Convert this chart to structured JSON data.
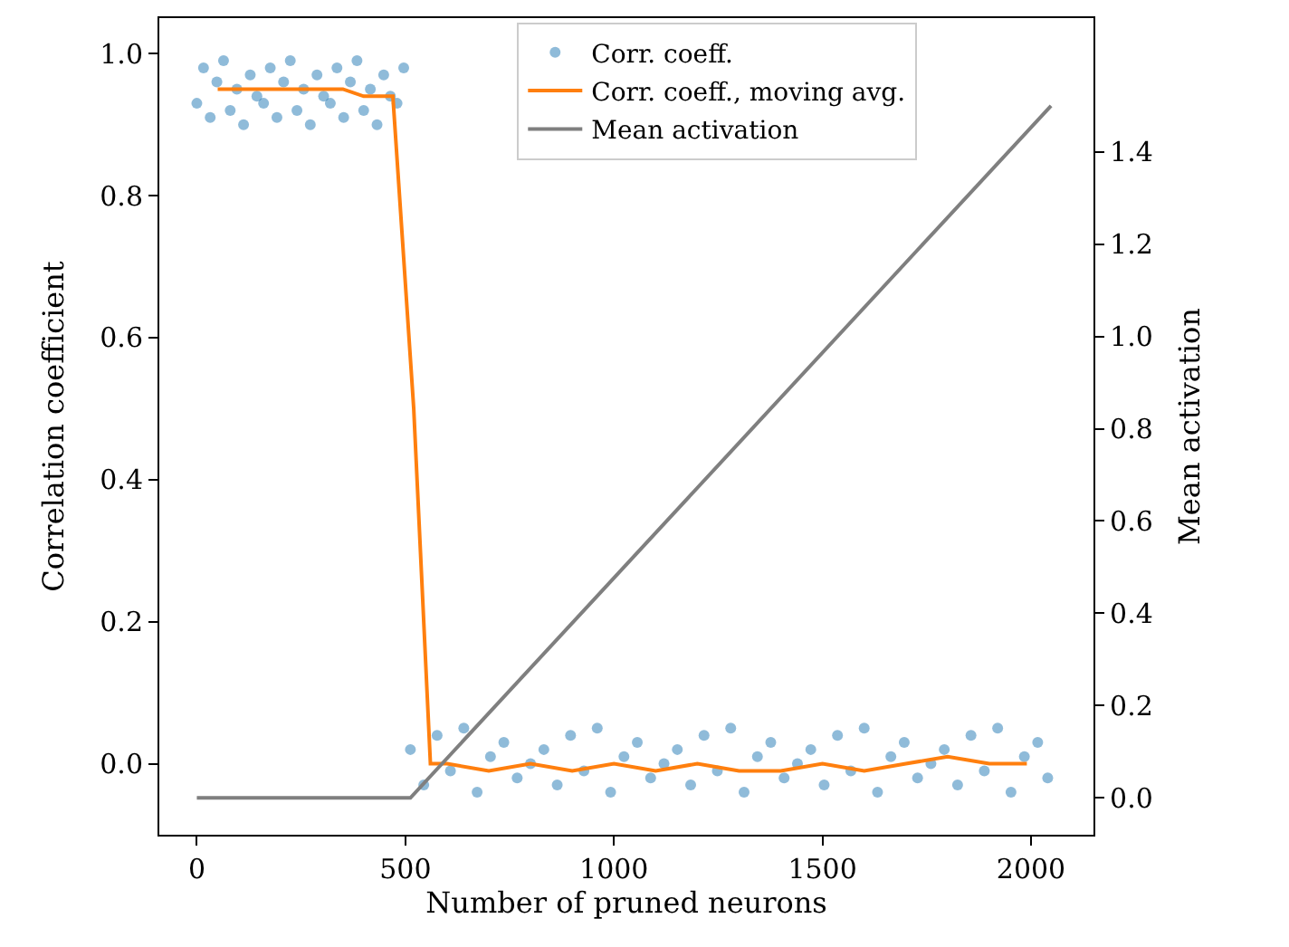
{
  "chart_data": {
    "type": "scatter",
    "xlabel": "Number of pruned neurons",
    "ylabel": "Correlation coefficient",
    "y2label": "Mean activation",
    "xlim": [
      -90,
      2150
    ],
    "xticks": [
      0,
      500,
      1000,
      1500,
      2000
    ],
    "ylim": [
      -0.1,
      1.05
    ],
    "yticks": [
      {
        "value": 0,
        "label": "0.0"
      },
      0.2,
      0.4,
      0.6,
      0.8,
      {
        "value": 1,
        "label": "1.0"
      }
    ],
    "y2lim": [
      -0.08,
      1.69
    ],
    "y2ticks": [
      {
        "value": 0,
        "label": "0.0"
      },
      0.2,
      0.4,
      0.6,
      0.8,
      {
        "value": 1,
        "label": "1.0"
      },
      1.2,
      1.4
    ],
    "legend": "top right",
    "grid": false,
    "series": [
      {
        "name": "Corr. coeff.",
        "marker": "circle",
        "color": "#1f77b4",
        "x": [
          0,
          16,
          32,
          48,
          64,
          80,
          96,
          112,
          128,
          144,
          160,
          176,
          192,
          208,
          224,
          240,
          256,
          272,
          288,
          304,
          320,
          336,
          352,
          368,
          384,
          400,
          416,
          432,
          448,
          464,
          480,
          496,
          512,
          544,
          576,
          608,
          640,
          672,
          704,
          736,
          768,
          800,
          832,
          864,
          896,
          928,
          960,
          992,
          1024,
          1056,
          1088,
          1120,
          1152,
          1184,
          1216,
          1248,
          1280,
          1312,
          1344,
          1376,
          1408,
          1440,
          1472,
          1504,
          1536,
          1568,
          1600,
          1632,
          1664,
          1696,
          1728,
          1760,
          1792,
          1824,
          1856,
          1888,
          1920,
          1952,
          1984,
          2016,
          2040
        ],
        "values": [
          0.93,
          0.98,
          0.91,
          0.96,
          0.99,
          0.92,
          0.95,
          0.9,
          0.97,
          0.94,
          0.93,
          0.98,
          0.91,
          0.96,
          0.99,
          0.92,
          0.95,
          0.9,
          0.97,
          0.94,
          0.93,
          0.98,
          0.91,
          0.96,
          0.99,
          0.92,
          0.95,
          0.9,
          0.97,
          0.94,
          0.93,
          0.98,
          0.02,
          -0.03,
          0.04,
          -0.01,
          0.05,
          -0.04,
          0.01,
          0.03,
          -0.02,
          0.0,
          0.02,
          -0.03,
          0.04,
          -0.01,
          0.05,
          -0.04,
          0.01,
          0.03,
          -0.02,
          0.0,
          0.02,
          -0.03,
          0.04,
          -0.01,
          0.05,
          -0.04,
          0.01,
          0.03,
          -0.02,
          0.0,
          0.02,
          -0.03,
          0.04,
          -0.01,
          0.05,
          -0.04,
          0.01,
          0.03,
          -0.02,
          0.0,
          0.02,
          -0.03,
          0.04,
          -0.01,
          0.05,
          -0.04,
          0.01,
          0.03,
          -0.02
        ]
      },
      {
        "name": "Corr. coeff., moving avg.",
        "type": "line",
        "marker": "none",
        "line_style": "solid",
        "color": "#ff7f0e",
        "x": [
          50,
          100,
          150,
          200,
          250,
          300,
          350,
          400,
          450,
          470,
          520,
          560,
          600,
          700,
          800,
          900,
          1000,
          1100,
          1200,
          1300,
          1400,
          1500,
          1600,
          1700,
          1800,
          1900,
          1990
        ],
        "values": [
          0.95,
          0.95,
          0.95,
          0.95,
          0.95,
          0.95,
          0.95,
          0.94,
          0.94,
          0.94,
          0.5,
          0.0,
          0.0,
          -0.01,
          0.0,
          -0.01,
          0.0,
          -0.01,
          0.0,
          -0.01,
          -0.01,
          0.0,
          -0.01,
          0.0,
          0.01,
          0.0,
          0.0
        ]
      },
      {
        "name": "Mean activation",
        "type": "line",
        "marker": "none",
        "line_style": "solid",
        "axis": "y2",
        "color": "#7f7f7f",
        "x": [
          0,
          512,
          2048
        ],
        "values": [
          0,
          0,
          1.5
        ]
      }
    ]
  }
}
